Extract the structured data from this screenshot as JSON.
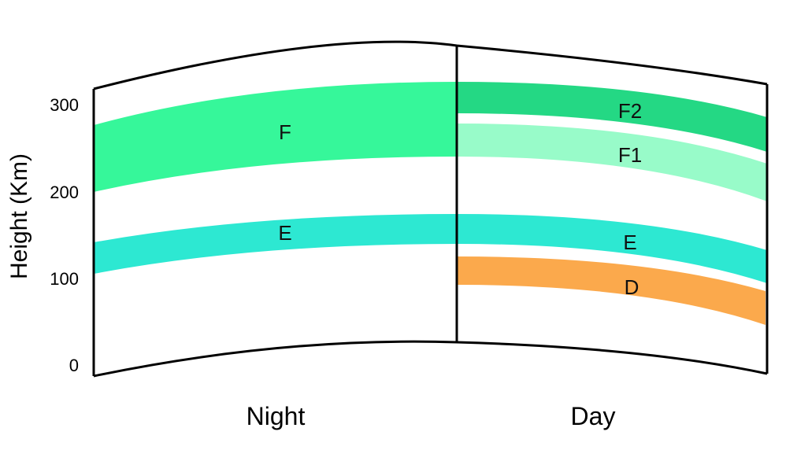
{
  "axis": {
    "title": "Height (Km)",
    "ticks": [
      "0",
      "100",
      "200",
      "300"
    ]
  },
  "panels": {
    "night": "Night",
    "day": "Day"
  },
  "layers": {
    "night_f": {
      "label": "F",
      "color": "#36f79a"
    },
    "night_e": {
      "label": "E",
      "color": "#2de8d2"
    },
    "day_f2": {
      "label": "F2",
      "color": "#24d884"
    },
    "day_f1": {
      "label": "F1",
      "color": "#98fbc9"
    },
    "day_e": {
      "label": "E",
      "color": "#2de8d2"
    },
    "day_d": {
      "label": "D",
      "color": "#fba94c"
    }
  }
}
